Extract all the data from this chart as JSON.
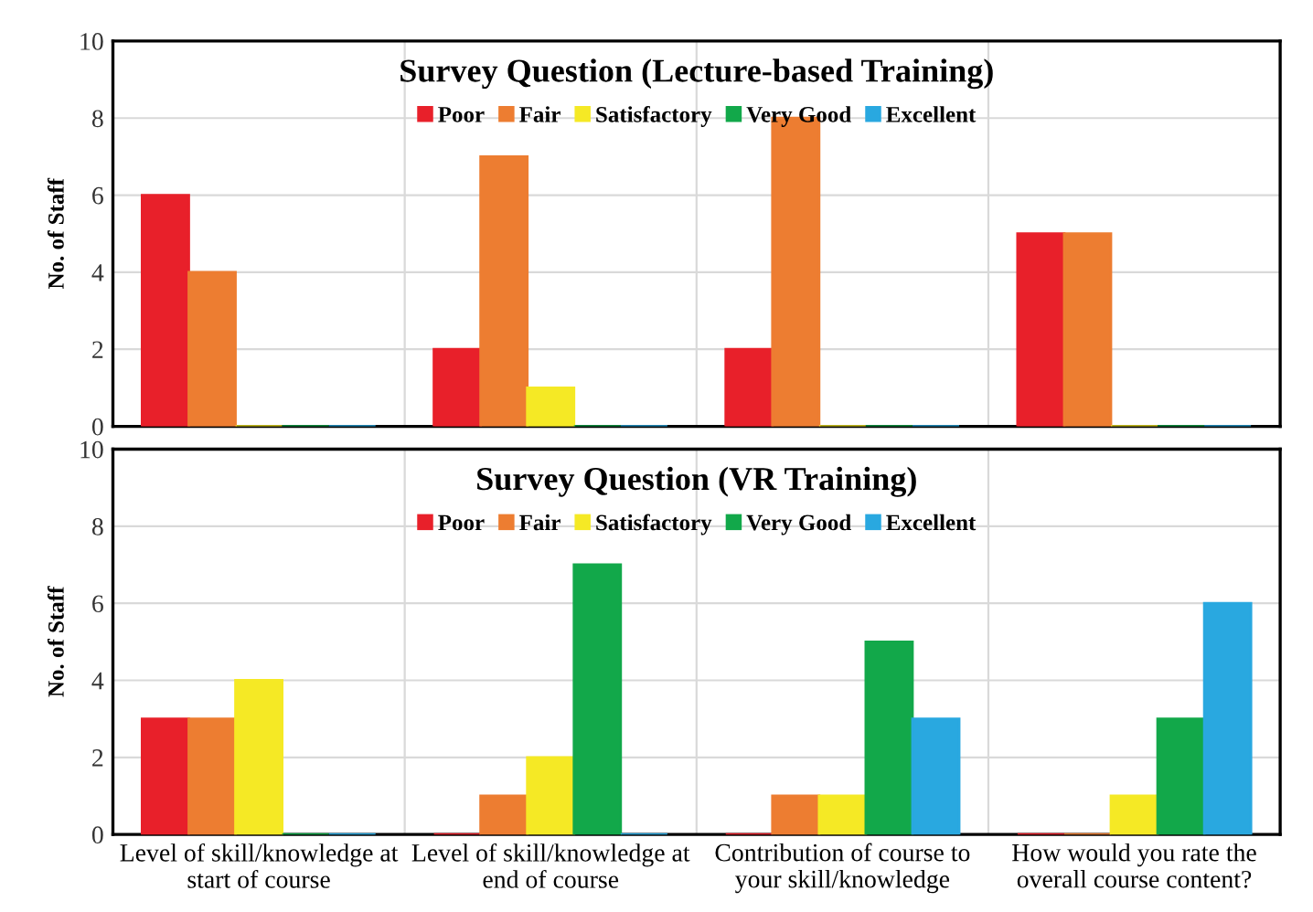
{
  "chart_data": [
    {
      "type": "bar",
      "title": "Survey Question (Lecture-based Training)",
      "ylabel": "No. of Staff",
      "categories": [
        null,
        null,
        null,
        null
      ],
      "series": [
        {
          "name": "Poor",
          "color": "#e8202a",
          "values": [
            6,
            2,
            2,
            5
          ]
        },
        {
          "name": "Fair",
          "color": "#ed7d31",
          "values": [
            4,
            7,
            8,
            5
          ]
        },
        {
          "name": "Satisfactory",
          "color": "#f5e925",
          "values": [
            0,
            1,
            0,
            0
          ]
        },
        {
          "name": "Very Good",
          "color": "#12a84a",
          "values": [
            0,
            0,
            0,
            0
          ]
        },
        {
          "name": "Excellent",
          "color": "#29a8e0",
          "values": [
            0,
            0,
            0,
            0
          ]
        }
      ],
      "ylim": [
        0,
        10
      ],
      "yticks": [
        0,
        2,
        4,
        6,
        8,
        10
      ],
      "grid": true,
      "legend": "top",
      "tick_labels": "y"
    },
    {
      "type": "bar",
      "title": "Survey Question (VR Training)",
      "ylabel": "No. of Staff",
      "categories": [
        "Level of skill/knowledge at start of course",
        "Level of skill/knowledge at end of course",
        "Contribution of course to your skill/knowledge",
        "How would you rate the overall course content?"
      ],
      "series": [
        {
          "name": "Poor",
          "color": "#e8202a",
          "values": [
            3,
            0,
            0,
            0
          ]
        },
        {
          "name": "Fair",
          "color": "#ed7d31",
          "values": [
            3,
            1,
            1,
            0
          ]
        },
        {
          "name": "Satisfactory",
          "color": "#f5e925",
          "values": [
            4,
            2,
            1,
            1
          ]
        },
        {
          "name": "Very Good",
          "color": "#12a84a",
          "values": [
            0,
            7,
            5,
            3
          ]
        },
        {
          "name": "Excellent",
          "color": "#29a8e0",
          "values": [
            0,
            0,
            3,
            6
          ]
        }
      ],
      "ylim": [
        0,
        10
      ],
      "yticks": [
        0,
        2,
        4,
        6,
        8,
        10
      ],
      "grid": true,
      "legend": "top"
    }
  ]
}
